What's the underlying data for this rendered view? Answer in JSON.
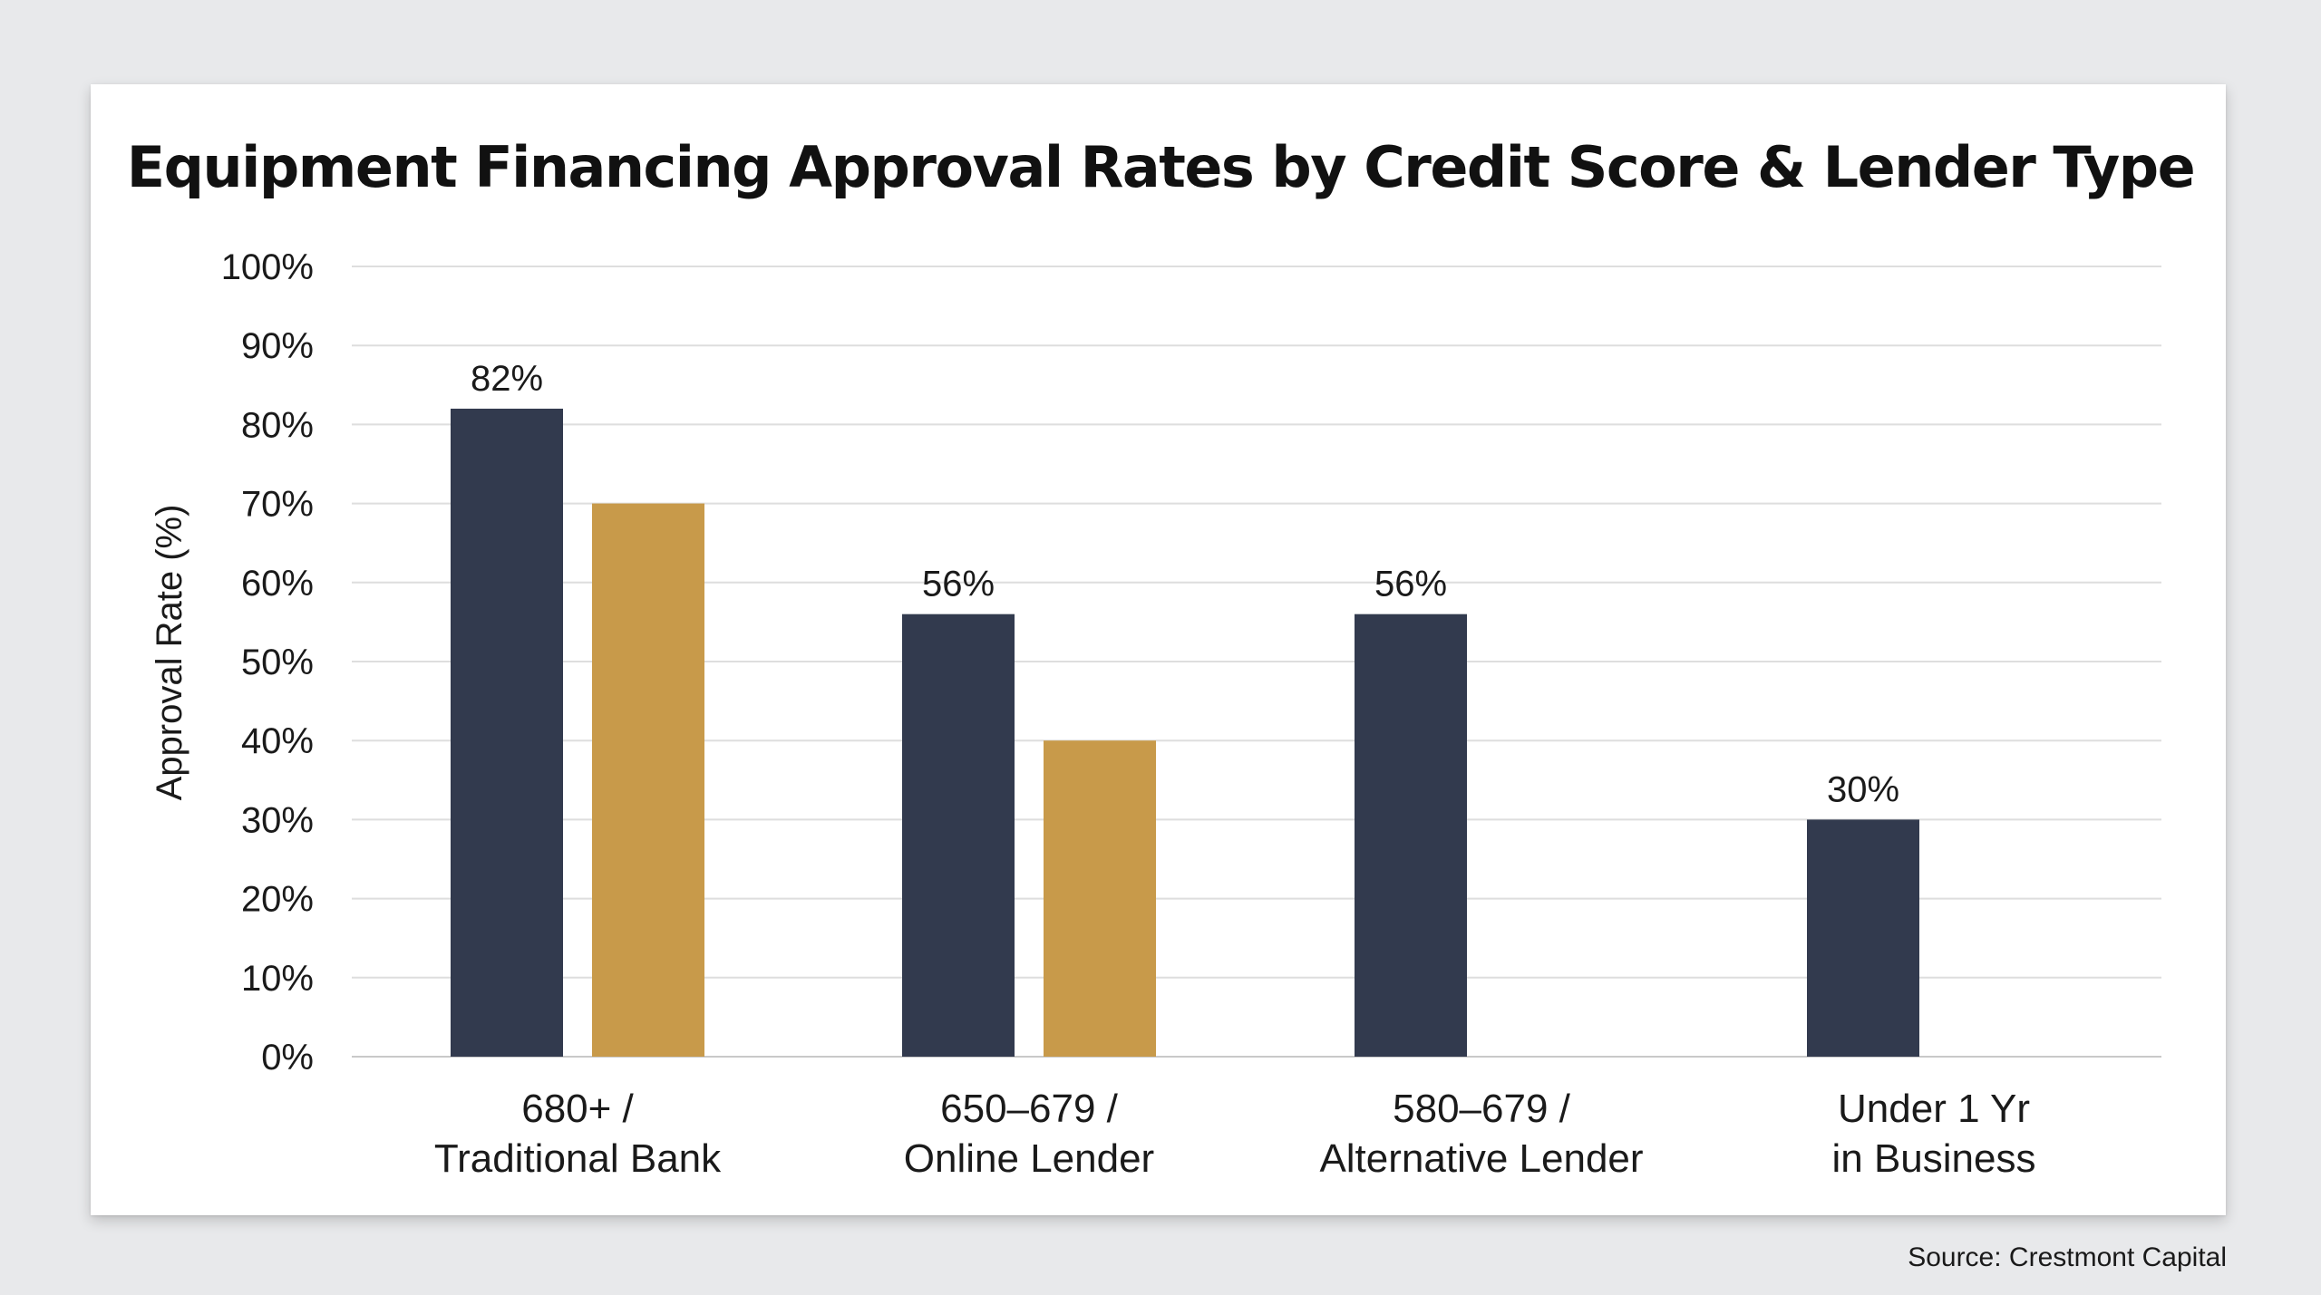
{
  "chart_data": {
    "type": "bar",
    "title": "Equipment Financing Approval Rates by Credit Score & Lender Type",
    "ylabel": "Approval Rate (%)",
    "xlabel": "",
    "ylim": [
      0,
      100
    ],
    "yticks": [
      "0%",
      "10%",
      "20%",
      "30%",
      "40%",
      "50%",
      "60%",
      "70%",
      "80%",
      "90%",
      "100%"
    ],
    "categories": [
      [
        "680+ /",
        "Traditional Bank"
      ],
      [
        "650–679 /",
        "Online Lender"
      ],
      [
        "580–679 /",
        "Alternative Lender"
      ],
      [
        "Under 1 Yr",
        "in Business"
      ]
    ],
    "series": [
      {
        "color": "#323a4e",
        "values": [
          82,
          56,
          56,
          30
        ],
        "data_labels": [
          "82%",
          "56%",
          "56%",
          "30%"
        ]
      },
      {
        "color": "#c89a4a",
        "values": [
          70,
          40,
          null,
          null
        ],
        "data_labels": [
          "",
          "",
          "",
          ""
        ]
      }
    ],
    "grid": true,
    "legend": "none"
  },
  "source": "Source: Crestmont Capital"
}
